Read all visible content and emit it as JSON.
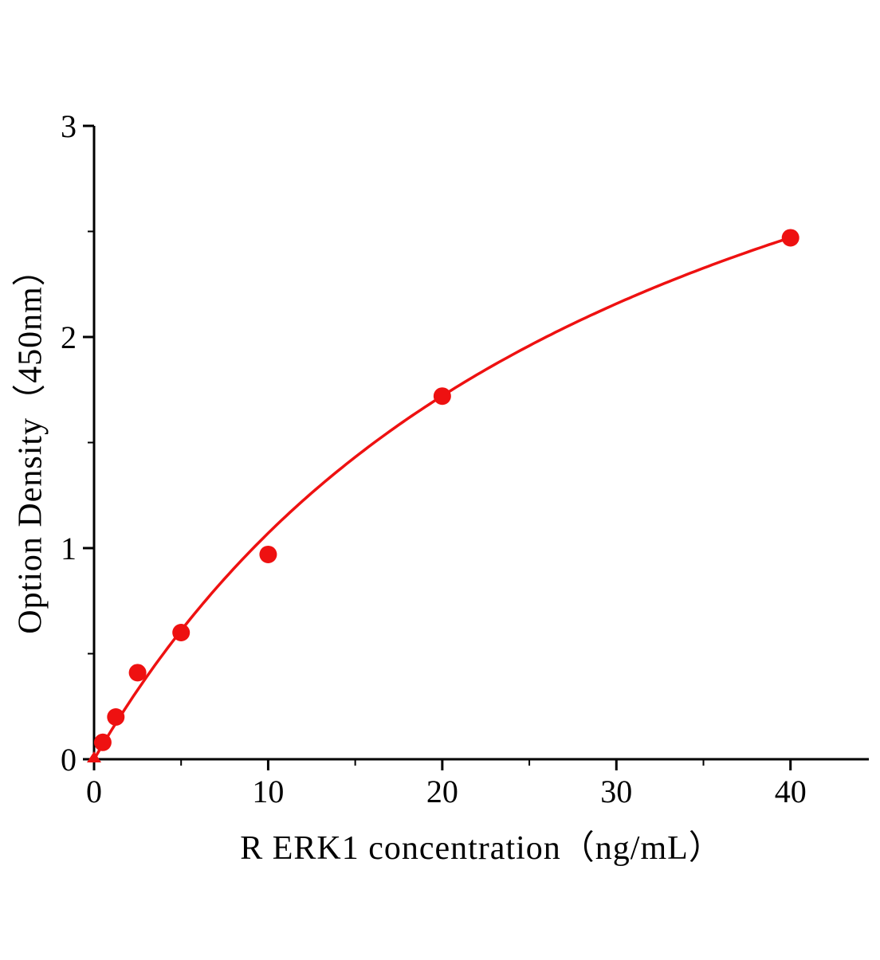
{
  "chart_data": {
    "type": "scatter",
    "title": "",
    "xlabel": "R ERK1  concentration（ng/mL）",
    "ylabel": "Option Density（450nm）",
    "x": [
      0,
      0.5,
      1.25,
      2.5,
      5,
      10,
      20,
      40
    ],
    "y": [
      0,
      0.08,
      0.2,
      0.41,
      0.6,
      0.97,
      1.72,
      2.47
    ],
    "xlim": [
      0,
      44.5
    ],
    "ylim": [
      0,
      3
    ],
    "x_ticks": [
      0,
      10,
      20,
      30,
      40
    ],
    "y_ticks": [
      0,
      1,
      2,
      3
    ],
    "x_minor_step": 5,
    "y_minor_step": 0.5,
    "grid": "off",
    "legend": "none",
    "point_color": "#ee1111",
    "curve_color": "#ee1111",
    "axis_color": "#000000",
    "fit": {
      "type": "michaelis-menten",
      "vmax": 4.38,
      "km": 30.9,
      "x_end": 40
    }
  }
}
